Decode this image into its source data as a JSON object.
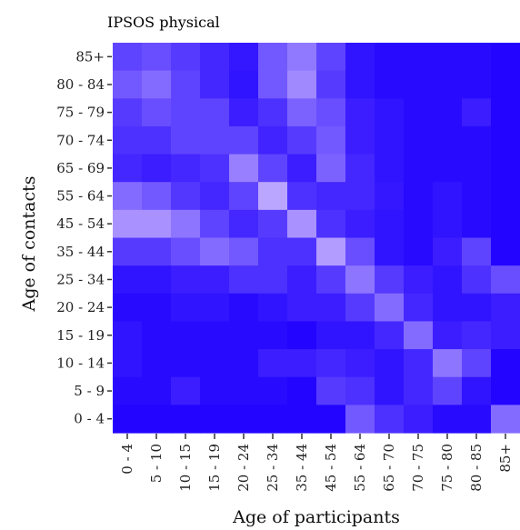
{
  "chart_data": {
    "type": "heatmap",
    "title": "IPSOS physical",
    "xlabel": "Age of participants",
    "ylabel": "Age of contacts",
    "x_categories": [
      "0 - 4",
      "5 - 10",
      "10 - 15",
      "15 - 19",
      "20 - 24",
      "25 - 34",
      "35 - 44",
      "45 - 54",
      "55 - 64",
      "65 - 70",
      "70 - 75",
      "75 - 80",
      "80 - 85",
      "85+"
    ],
    "y_categories": [
      "0 - 4",
      "5 - 9",
      "10 - 14",
      "15 - 19",
      "20 - 24",
      "25 - 34",
      "35 - 44",
      "45 - 54",
      "55 - 64",
      "65 - 69",
      "70 - 74",
      "75 - 79",
      "80 - 84",
      "85+"
    ],
    "color_low": "#1f00ff",
    "color_high": "#d7c3ff",
    "values": [
      [
        0.35,
        0.4,
        0.3,
        0.2,
        0.12,
        0.45,
        0.62,
        0.35,
        0.1,
        0.05,
        0.05,
        0.05,
        0.05,
        0.02
      ],
      [
        0.45,
        0.55,
        0.35,
        0.2,
        0.1,
        0.45,
        0.7,
        0.3,
        0.1,
        0.05,
        0.05,
        0.05,
        0.05,
        0.02
      ],
      [
        0.3,
        0.4,
        0.35,
        0.35,
        0.15,
        0.25,
        0.5,
        0.4,
        0.15,
        0.1,
        0.05,
        0.05,
        0.15,
        0.02
      ],
      [
        0.25,
        0.25,
        0.35,
        0.35,
        0.35,
        0.18,
        0.3,
        0.45,
        0.15,
        0.1,
        0.05,
        0.05,
        0.05,
        0.02
      ],
      [
        0.2,
        0.15,
        0.2,
        0.25,
        0.65,
        0.35,
        0.15,
        0.5,
        0.2,
        0.1,
        0.05,
        0.05,
        0.05,
        0.02
      ],
      [
        0.55,
        0.45,
        0.28,
        0.2,
        0.35,
        0.85,
        0.25,
        0.2,
        0.2,
        0.12,
        0.05,
        0.1,
        0.05,
        0.02
      ],
      [
        0.75,
        0.75,
        0.6,
        0.35,
        0.2,
        0.3,
        0.75,
        0.25,
        0.15,
        0.1,
        0.05,
        0.1,
        0.05,
        0.02
      ],
      [
        0.3,
        0.3,
        0.4,
        0.55,
        0.45,
        0.25,
        0.25,
        0.8,
        0.4,
        0.1,
        0.05,
        0.15,
        0.35,
        0.02
      ],
      [
        0.1,
        0.1,
        0.15,
        0.15,
        0.25,
        0.25,
        0.15,
        0.3,
        0.6,
        0.3,
        0.15,
        0.1,
        0.25,
        0.4
      ],
      [
        0.05,
        0.05,
        0.1,
        0.1,
        0.05,
        0.1,
        0.15,
        0.15,
        0.3,
        0.55,
        0.2,
        0.1,
        0.1,
        0.15
      ],
      [
        0.1,
        0.05,
        0.05,
        0.05,
        0.05,
        0.05,
        0.02,
        0.1,
        0.1,
        0.2,
        0.55,
        0.15,
        0.2,
        0.15
      ],
      [
        0.1,
        0.05,
        0.05,
        0.05,
        0.05,
        0.15,
        0.15,
        0.2,
        0.15,
        0.1,
        0.2,
        0.6,
        0.35,
        0.02
      ],
      [
        0.05,
        0.05,
        0.15,
        0.05,
        0.05,
        0.05,
        0.02,
        0.3,
        0.25,
        0.1,
        0.2,
        0.35,
        0.1,
        0.02
      ],
      [
        0.02,
        0.02,
        0.02,
        0.02,
        0.02,
        0.02,
        0.02,
        0.02,
        0.45,
        0.25,
        0.15,
        0.05,
        0.05,
        0.55
      ]
    ]
  }
}
